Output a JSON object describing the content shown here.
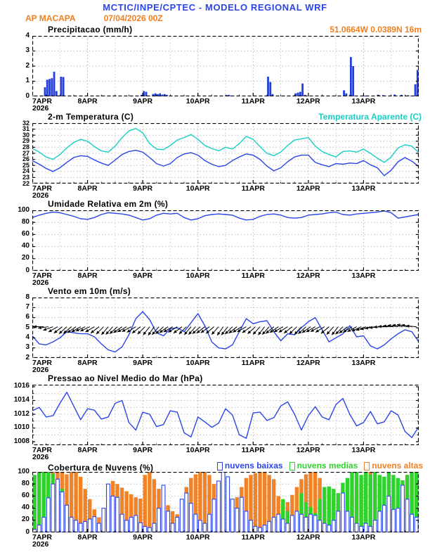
{
  "header": {
    "title": "MCTIC/INPE/CPTEC - MODELO REGIONAL WRF",
    "title_color": "#2b45e8",
    "station": "AP MACAPA",
    "run": "07/04/2026 00Z",
    "coords": "51.0664W 0.0389N 16m",
    "accent": "#f07f20"
  },
  "x_axis": {
    "days": [
      "7APR",
      "8APR",
      "9APR",
      "10APR",
      "11APR",
      "12APR",
      "13APR"
    ],
    "year": "2026",
    "hours_total": 168
  },
  "chart_data": [
    {
      "id": "precip",
      "type": "bar",
      "title": "Precipitacao (mm/h)",
      "right_label": "51.0664W 0.0389N 16m",
      "color": "#2340dd",
      "ylim": [
        0,
        4
      ],
      "yticks": [
        0,
        1,
        2,
        3,
        4
      ],
      "grid": [
        1,
        2,
        3
      ],
      "points": [
        [
          5,
          0.6
        ],
        [
          6,
          1.1
        ],
        [
          7,
          1.15
        ],
        [
          8,
          1.2
        ],
        [
          9,
          1.63
        ],
        [
          10,
          0.35
        ],
        [
          12,
          1.3
        ],
        [
          13,
          1.28
        ],
        [
          47,
          0.1
        ],
        [
          48,
          0.35
        ],
        [
          49,
          0.3
        ],
        [
          52,
          0.15
        ],
        [
          53,
          0.2
        ],
        [
          54,
          0.15
        ],
        [
          55,
          0.2
        ],
        [
          56,
          0.12
        ],
        [
          57,
          0.15
        ],
        [
          58,
          0.1
        ],
        [
          84,
          0.08
        ],
        [
          85,
          0.1
        ],
        [
          86,
          0.05
        ],
        [
          102,
          1.3
        ],
        [
          103,
          0.95
        ],
        [
          104,
          0.15
        ],
        [
          114,
          0.2
        ],
        [
          115,
          0.25
        ],
        [
          116,
          0.3
        ],
        [
          117,
          0.85
        ],
        [
          118,
          0.1
        ],
        [
          135,
          0.4
        ],
        [
          136,
          0.2
        ],
        [
          138,
          2.6
        ],
        [
          139,
          2.0
        ],
        [
          144,
          0.05
        ],
        [
          150,
          0.1
        ],
        [
          152,
          0.08
        ],
        [
          157,
          0.12
        ],
        [
          160,
          0.1
        ],
        [
          163,
          0.07
        ],
        [
          166,
          0.8
        ],
        [
          167,
          1.75
        ]
      ]
    },
    {
      "id": "temp",
      "type": "line",
      "dense": true,
      "title": "2-m Temperatura (C)",
      "right_label": "Temperatura Aparente (C)",
      "step_h": 3,
      "ylim": [
        22,
        32
      ],
      "yticks": [
        22,
        23,
        24,
        25,
        26,
        27,
        28,
        29,
        30,
        31,
        32
      ],
      "grid": [
        23,
        24,
        25,
        26,
        27,
        28,
        29,
        30,
        31
      ],
      "series": [
        {
          "name": "2-m Temperatura (C)",
          "color": "#2b45e8",
          "values": [
            25.8,
            25.2,
            24.5,
            24.0,
            24.6,
            25.5,
            26.3,
            26.6,
            26.5,
            25.9,
            25.4,
            25.0,
            25.9,
            26.8,
            27.3,
            27.5,
            27.2,
            26.3,
            25.3,
            24.9,
            25.3,
            26.3,
            26.9,
            27.1,
            26.7,
            25.8,
            25.2,
            24.8,
            25.0,
            25.8,
            26.4,
            26.9,
            26.7,
            26.0,
            24.9,
            24.1,
            24.6,
            25.6,
            26.4,
            26.7,
            26.7,
            25.5,
            25.1,
            24.8,
            25.3,
            25.2,
            25.4,
            25.3,
            25.8,
            25.1,
            24.6,
            23.3,
            24.2,
            25.6,
            26.3,
            25.7,
            24.8
          ]
        },
        {
          "name": "Temperatura Aparente (C)",
          "color": "#17cfc4",
          "values": [
            27.8,
            27.2,
            26.4,
            26.0,
            26.8,
            27.9,
            28.8,
            29.3,
            29.0,
            28.1,
            27.4,
            27.2,
            28.2,
            29.6,
            30.7,
            31.1,
            30.4,
            28.6,
            27.7,
            27.6,
            28.3,
            29.2,
            29.6,
            30.1,
            29.3,
            28.3,
            27.8,
            27.4,
            28.0,
            27.7,
            28.6,
            29.8,
            29.3,
            28.1,
            27.0,
            26.6,
            27.2,
            28.3,
            29.2,
            29.4,
            29.6,
            28.2,
            27.3,
            26.8,
            26.4,
            27.3,
            27.4,
            27.2,
            27.7,
            27.0,
            26.2,
            25.5,
            26.4,
            27.9,
            28.4,
            28.2,
            27.1
          ]
        }
      ]
    },
    {
      "id": "humidity",
      "type": "line",
      "title": "Umidade Relativa em 2m (%)",
      "step_h": 3,
      "ylim": [
        0,
        100
      ],
      "yticks": [
        0,
        20,
        40,
        60,
        80,
        100
      ],
      "grid": [
        20,
        40,
        60,
        80
      ],
      "series": [
        {
          "name": "Umidade Relativa",
          "color": "#2b45e8",
          "values": [
            88,
            92,
            95,
            97,
            96,
            93,
            90,
            86,
            85,
            88,
            93,
            96,
            95,
            94,
            92,
            88,
            84,
            86,
            92,
            95,
            94,
            95,
            88,
            84,
            86,
            91,
            93,
            94,
            93,
            92,
            87,
            84,
            85,
            90,
            93,
            94,
            92,
            88,
            87,
            88,
            92,
            93,
            94,
            96,
            97,
            93,
            92,
            94,
            95,
            96,
            97,
            99,
            96,
            87,
            89,
            91,
            93
          ]
        }
      ]
    },
    {
      "id": "wind",
      "type": "line",
      "title": "Vento em 10m (m/s)",
      "step_h": 3,
      "ylim": [
        2,
        8
      ],
      "yticks": [
        2,
        3,
        4,
        5,
        6,
        7,
        8
      ],
      "grid": [
        3,
        4,
        5,
        6,
        7
      ],
      "series": [
        {
          "name": "Velocidade do vento",
          "color": "#2b45e8",
          "values": [
            4.2,
            3.4,
            3.3,
            3.6,
            4.0,
            4.6,
            4.5,
            4.4,
            4.4,
            4.1,
            3.4,
            2.8,
            2.6,
            3.1,
            4.3,
            5.9,
            6.6,
            5.8,
            4.5,
            4.2,
            4.9,
            5.0,
            4.6,
            5.5,
            6.4,
            5.2,
            3.6,
            3.0,
            2.9,
            3.3,
            4.6,
            5.9,
            5.4,
            5.6,
            5.7,
            4.6,
            3.7,
            4.4,
            4.3,
            5.0,
            5.6,
            6.0,
            4.8,
            3.6,
            4.0,
            4.4,
            5.2,
            4.1,
            4.2,
            3.2,
            2.9,
            3.3,
            3.9,
            4.4,
            4.8,
            4.6,
            3.6
          ]
        }
      ],
      "arrows": {
        "step_h": 2,
        "anchor": 5.1,
        "len": 15,
        "color": "#000000",
        "angles": [
          172,
          175,
          180,
          188,
          200,
          210,
          218,
          222,
          220,
          215,
          210,
          205,
          205,
          210,
          218,
          225,
          230,
          228,
          222,
          215,
          210,
          208,
          212,
          218,
          225,
          232,
          235,
          230,
          222,
          215,
          210,
          212,
          218,
          225,
          230,
          228,
          222,
          218,
          215,
          220,
          228,
          235,
          232,
          225,
          218,
          212,
          210,
          215,
          222,
          228,
          232,
          228,
          220,
          214,
          210,
          212,
          218,
          224,
          228,
          222,
          215,
          210,
          208,
          212,
          220,
          228,
          232,
          226,
          218,
          212,
          208,
          205,
          200,
          195,
          190,
          186,
          182,
          178,
          175,
          172,
          170,
          168,
          170,
          175
        ]
      }
    },
    {
      "id": "pressure",
      "type": "line",
      "title": "Pressao ao Nivel Medio do Mar (hPa)",
      "step_h": 3,
      "ylim": [
        1007.5,
        1016.3
      ],
      "yticks": [
        1008,
        1010,
        1012,
        1014,
        1016
      ],
      "yminor": [
        1009,
        1011,
        1013,
        1015
      ],
      "grid": [
        1009,
        1010,
        1011,
        1012,
        1013,
        1014,
        1015
      ],
      "series": [
        {
          "name": "Pressao ao nivel do mar",
          "color": "#2b45e8",
          "values": [
            1012.5,
            1013.0,
            1011.6,
            1011.8,
            1013.6,
            1015.2,
            1013.2,
            1011.2,
            1012.8,
            1012.6,
            1011.3,
            1011.6,
            1013.6,
            1014.0,
            1010.8,
            1009.7,
            1012.3,
            1012.0,
            1010.2,
            1010.5,
            1012.5,
            1012.3,
            1009.3,
            1008.7,
            1011.6,
            1010.9,
            1010.1,
            1010.7,
            1012.8,
            1011.9,
            1009.0,
            1008.5,
            1012.2,
            1012.3,
            1011.1,
            1011.5,
            1013.2,
            1013.8,
            1012.0,
            1009.7,
            1011.8,
            1013.1,
            1011.6,
            1011.2,
            1013.4,
            1014.3,
            1012.0,
            1010.3,
            1010.8,
            1012.4,
            1010.6,
            1010.9,
            1012.5,
            1011.9,
            1009.5,
            1008.6,
            1010.2
          ]
        }
      ]
    },
    {
      "id": "clouds",
      "type": "cloud",
      "title": "Cobertura de Nuvens (%)",
      "step_h": 2,
      "ylim": [
        0,
        100
      ],
      "yticks": [
        0,
        20,
        40,
        60,
        80,
        100
      ],
      "grid": [
        20,
        40,
        60,
        80
      ],
      "bars": [
        {
          "label": "nuvens altas",
          "color": "#f08228",
          "style": "solid",
          "values": [
            85,
            95,
            100,
            100,
            100,
            100,
            100,
            96,
            100,
            100,
            92,
            72,
            55,
            38,
            25,
            30,
            55,
            85,
            80,
            74,
            68,
            63,
            58,
            56,
            95,
            100,
            88,
            72,
            55,
            45,
            35,
            30,
            55,
            75,
            90,
            96,
            100,
            100,
            95,
            80,
            60,
            45,
            30,
            35,
            58,
            75,
            90,
            95,
            98,
            100,
            100,
            95,
            88,
            60,
            45,
            50,
            62,
            75,
            88,
            96,
            100,
            100,
            90,
            75,
            60,
            50,
            45,
            55,
            50,
            60,
            70,
            80,
            95,
            100,
            90,
            80,
            40,
            60,
            55,
            65,
            80,
            95,
            100,
            100
          ]
        },
        {
          "label": "nuvens medias",
          "color": "#2ed32e",
          "style": "solid",
          "values": [
            95,
            100,
            100,
            100,
            97,
            88,
            72,
            45,
            20,
            8,
            5,
            3,
            2,
            2,
            2,
            3,
            3,
            2,
            2,
            2,
            2,
            2,
            2,
            2,
            2,
            2,
            2,
            2,
            3,
            3,
            2,
            2,
            5,
            4,
            3,
            2,
            2,
            2,
            3,
            3,
            4,
            3,
            3,
            3,
            3,
            2,
            2,
            2,
            2,
            3,
            3,
            3,
            5,
            8,
            55,
            35,
            22,
            32,
            65,
            50,
            42,
            32,
            55,
            75,
            76,
            72,
            65,
            82,
            90,
            100,
            100,
            95,
            100,
            96,
            100,
            95,
            92,
            100,
            95,
            90,
            86,
            95,
            100,
            100
          ]
        },
        {
          "label": "nuvens baixas",
          "color": "#2b45e8",
          "style": "hollow",
          "values": [
            5,
            12,
            25,
            57,
            80,
            88,
            67,
            45,
            25,
            20,
            15,
            18,
            22,
            26,
            15,
            40,
            80,
            60,
            58,
            30,
            20,
            25,
            28,
            16,
            10,
            8,
            15,
            40,
            78,
            35,
            15,
            25,
            55,
            65,
            48,
            30,
            20,
            15,
            30,
            55,
            85,
            100,
            92,
            55,
            40,
            58,
            35,
            20,
            10,
            8,
            12,
            18,
            25,
            30,
            22,
            15,
            28,
            35,
            30,
            25,
            30,
            28,
            20,
            15,
            12,
            20,
            35,
            65,
            35,
            25,
            15,
            10,
            15,
            10,
            20,
            35,
            45,
            60,
            38,
            40,
            78,
            55,
            30,
            25
          ]
        }
      ],
      "legend": [
        {
          "label": "nuvens baixas",
          "color": "#2b45e8"
        },
        {
          "label": "nuvens medias",
          "color": "#2ed32e"
        },
        {
          "label": "nuvens altas",
          "color": "#f08228"
        }
      ]
    }
  ]
}
